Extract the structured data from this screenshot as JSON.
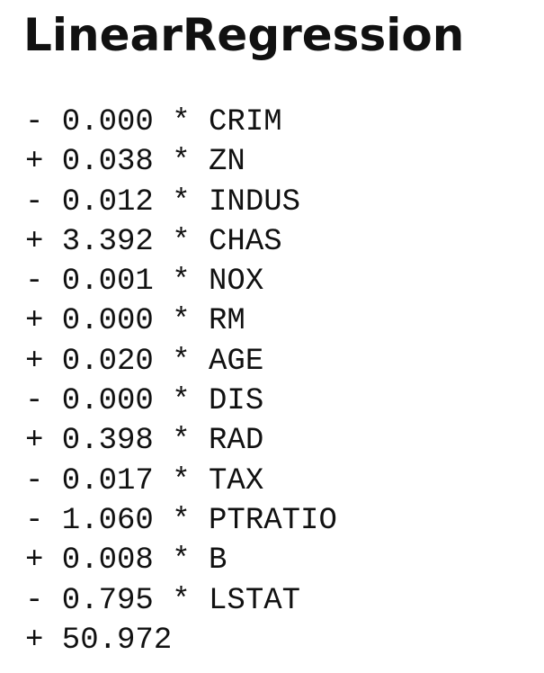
{
  "title": "LinearRegression",
  "lines": [
    "- 0.000 * CRIM",
    "+ 0.038 * ZN",
    "- 0.012 * INDUS",
    "+ 3.392 * CHAS",
    "- 0.001 * NOX",
    "+ 0.000 * RM",
    "+ 0.020 * AGE",
    "- 0.000 * DIS",
    "+ 0.398 * RAD",
    "- 0.017 * TAX",
    "- 1.060 * PTRATIO",
    "+ 0.008 * B",
    "- 0.795 * LSTAT",
    "+ 50.972"
  ]
}
